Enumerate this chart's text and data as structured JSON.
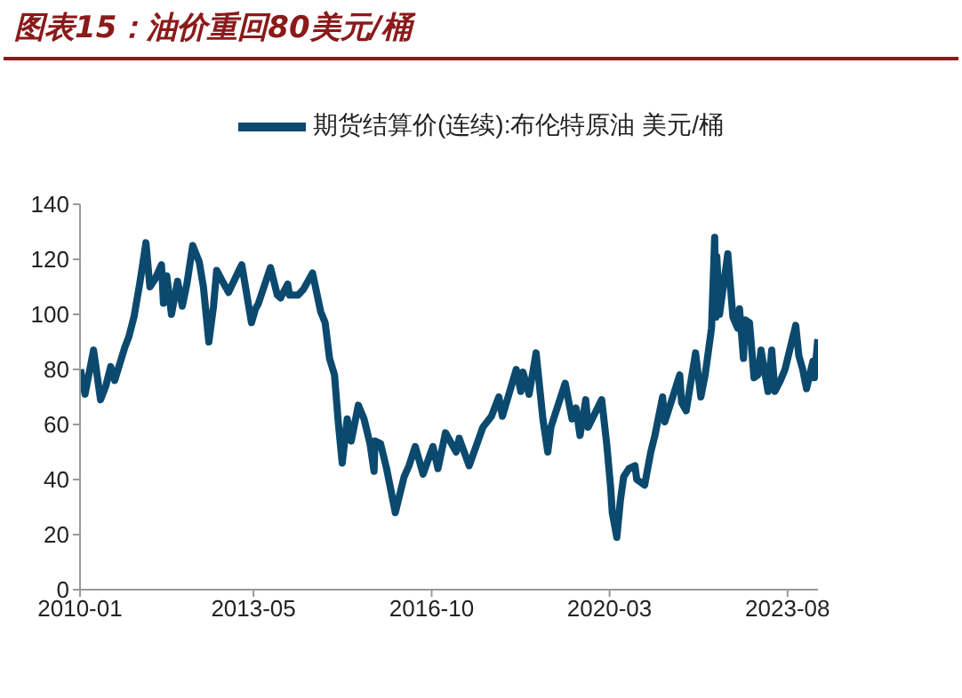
{
  "chart_data": {
    "type": "line",
    "title": "图表15：油价重回80美元/桶",
    "x": [
      "2010-01-04",
      "2010-02-05",
      "2010-04-06",
      "2010-05-25",
      "2010-07-01",
      "2010-08-04",
      "2010-09-01",
      "2010-11-11",
      "2010-12-10",
      "2011-01-14",
      "2011-02-23",
      "2011-03-10",
      "2011-04-08",
      "2011-05-06",
      "2011-06-13",
      "2011-07-26",
      "2011-08-09",
      "2011-09-01",
      "2011-10-04",
      "2011-11-16",
      "2011-12-19",
      "2012-01-20",
      "2012-03-01",
      "2012-04-16",
      "2012-05-15",
      "2012-06-22",
      "2012-07-25",
      "2012-08-16",
      "2012-09-26",
      "2012-11-07",
      "2013-01-29",
      "2013-02-08",
      "2013-04-17",
      "2013-05-15",
      "2013-06-05",
      "2013-08-28",
      "2013-10-15",
      "2013-11-07",
      "2013-12-27",
      "2014-01-09",
      "2014-03-10",
      "2014-04-15",
      "2014-06-19",
      "2014-08-15",
      "2014-09-15",
      "2014-10-16",
      "2014-11-20",
      "2014-12-16",
      "2015-01-13",
      "2015-02-17",
      "2015-03-17",
      "2015-05-06",
      "2015-06-15",
      "2015-07-27",
      "2015-08-24",
      "2015-08-31",
      "2015-10-09",
      "2015-11-20",
      "2015-12-21",
      "2016-01-20",
      "2016-03-22",
      "2016-04-25",
      "2016-06-08",
      "2016-08-02",
      "2016-10-10",
      "2016-11-14",
      "2017-01-06",
      "2017-03-22",
      "2017-04-12",
      "2017-06-21",
      "2017-09-25",
      "2017-11-24",
      "2018-01-15",
      "2018-02-09",
      "2018-05-17",
      "2018-06-18",
      "2018-07-03",
      "2018-08-15",
      "2018-10-03",
      "2018-11-20",
      "2018-12-24",
      "2019-01-15",
      "2019-04-25",
      "2019-06-12",
      "2019-07-10",
      "2019-08-07",
      "2019-09-16",
      "2019-10-03",
      "2019-12-27",
      "2020-01-06",
      "2020-02-10",
      "2020-03-09",
      "2020-03-20",
      "2020-04-21",
      "2020-05-15",
      "2020-06-08",
      "2020-07-15",
      "2020-08-26",
      "2020-09-08",
      "2020-11-02",
      "2020-12-15",
      "2021-01-13",
      "2021-03-08",
      "2021-03-23",
      "2021-05-18",
      "2021-07-06",
      "2021-07-19",
      "2021-08-20",
      "2021-10-25",
      "2021-12-01",
      "2021-12-31",
      "2022-02-14",
      "2022-03-08",
      "2022-03-16",
      "2022-03-23",
      "2022-04-11",
      "2022-06-08",
      "2022-07-14",
      "2022-08-16",
      "2022-08-29",
      "2022-09-26",
      "2022-10-07",
      "2022-11-07",
      "2022-12-09",
      "2023-01-05",
      "2023-01-27",
      "2023-03-17",
      "2023-04-12",
      "2023-05-04",
      "2023-06-12",
      "2023-07-14",
      "2023-09-27",
      "2023-10-19",
      "2023-11-15",
      "2023-12-12",
      "2024-01-03",
      "2024-01-26",
      "2024-02-05",
      "2024-02-29"
    ],
    "series": [
      {
        "name": "期货结算价(连续):布伦特原油 美元/桶",
        "color": "#0b4a6e",
        "values": [
          80,
          71,
          87,
          69,
          74,
          81,
          76,
          88,
          92,
          99,
          111,
          116,
          126,
          110,
          113,
          118,
          104,
          114,
          100,
          112,
          103,
          111,
          125,
          119,
          110,
          90,
          103,
          116,
          112,
          108,
          117,
          118,
          97,
          102,
          104,
          117,
          107,
          106,
          111,
          107,
          107,
          109,
          115,
          101,
          97,
          84,
          78,
          61,
          46,
          62,
          54,
          67,
          62,
          53,
          43,
          54,
          53,
          44,
          36,
          28,
          41,
          45,
          52,
          42,
          52,
          44,
          57,
          50,
          55,
          45,
          59,
          63,
          70,
          63,
          80,
          72,
          79,
          71,
          86,
          62,
          50,
          59,
          75,
          62,
          66,
          56,
          69,
          59,
          68,
          69,
          53,
          37,
          28,
          19,
          32,
          41,
          44,
          45,
          40,
          38,
          50,
          56,
          70,
          61,
          70,
          78,
          68,
          65,
          86,
          70,
          78,
          95,
          128,
          99,
          121,
          100,
          122,
          99,
          95,
          102,
          84,
          98,
          97,
          77,
          78,
          87,
          72,
          87,
          72,
          76,
          80,
          96,
          85,
          80,
          73,
          78,
          83,
          77,
          91
        ]
      }
    ],
    "xlim": [
      "2010-01",
      "2024-03"
    ],
    "xticks": [
      "2010-01",
      "2013-05",
      "2016-10",
      "2020-03",
      "2023-08"
    ],
    "ylim": [
      0,
      140
    ],
    "yticks": [
      0,
      20,
      40,
      60,
      80,
      100,
      120,
      140
    ],
    "legend": "top",
    "marker": "none",
    "line_style": "solid"
  }
}
